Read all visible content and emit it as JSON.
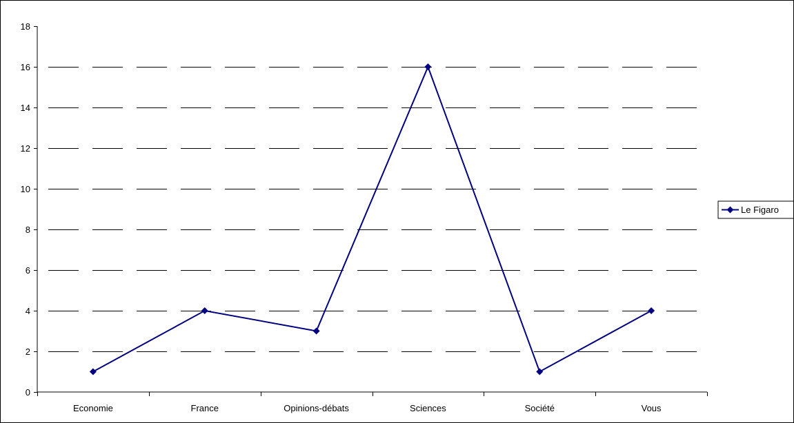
{
  "chart_data": {
    "type": "line",
    "title": "",
    "xlabel": "",
    "ylabel": "",
    "categories": [
      "Economie",
      "France",
      "Opinions-débats",
      "Sciences",
      "Société",
      "Vous"
    ],
    "series": [
      {
        "name": "Le Figaro",
        "values": [
          1,
          4,
          3,
          16,
          1,
          4
        ]
      }
    ],
    "ylim": [
      0,
      18
    ],
    "yticks": [
      0,
      2,
      4,
      6,
      8,
      10,
      12,
      14,
      16,
      18
    ],
    "grid": "horizontal dashed",
    "legend_position": "right",
    "legend_label": "Le Figaro",
    "colors": {
      "series": "#000080",
      "grid": "#000000",
      "axis": "#000000"
    }
  }
}
